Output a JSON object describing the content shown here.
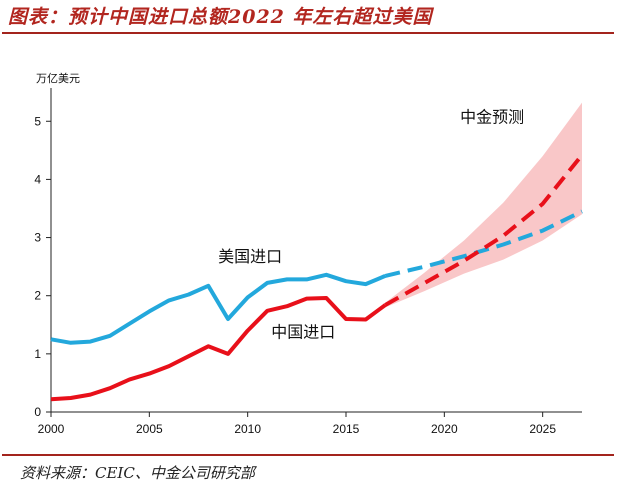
{
  "title": "图表：预计中国进口总额2022 年左右超过美国",
  "source": "资料来源：CEIC、中金公司研究部",
  "chart_data": {
    "type": "line",
    "ylabel": "万亿美元",
    "xlim": [
      2000,
      2027
    ],
    "ylim": [
      0,
      5.4
    ],
    "x_ticks": [
      2000,
      2005,
      2010,
      2015,
      2020,
      2025
    ],
    "y_ticks": [
      0,
      1,
      2,
      3,
      4,
      5
    ],
    "series": [
      {
        "name": "美国进口",
        "color": "#23a8dc",
        "style": "solid",
        "x": [
          2000,
          2001,
          2002,
          2003,
          2004,
          2005,
          2006,
          2007,
          2008,
          2009,
          2010,
          2011,
          2012,
          2013,
          2014,
          2015,
          2016,
          2017
        ],
        "values": [
          1.25,
          1.19,
          1.21,
          1.31,
          1.52,
          1.73,
          1.92,
          2.02,
          2.17,
          1.6,
          1.97,
          2.22,
          2.28,
          2.28,
          2.36,
          2.25,
          2.2,
          2.34
        ]
      },
      {
        "name": "美国进口（预测）",
        "color": "#23a8dc",
        "style": "dashed",
        "x": [
          2017,
          2019,
          2021,
          2023,
          2025,
          2027
        ],
        "values": [
          2.34,
          2.5,
          2.68,
          2.88,
          3.12,
          3.45
        ]
      },
      {
        "name": "中国进口",
        "color": "#e8101a",
        "style": "solid",
        "x": [
          2000,
          2001,
          2002,
          2003,
          2004,
          2005,
          2006,
          2007,
          2008,
          2009,
          2010,
          2011,
          2012,
          2013,
          2014,
          2015,
          2016,
          2017
        ],
        "values": [
          0.22,
          0.24,
          0.3,
          0.41,
          0.56,
          0.66,
          0.79,
          0.96,
          1.13,
          1.0,
          1.4,
          1.74,
          1.82,
          1.95,
          1.96,
          1.6,
          1.59,
          1.84
        ]
      },
      {
        "name": "中国进口（预测）",
        "color": "#e8101a",
        "style": "dashed",
        "x": [
          2017,
          2019,
          2021,
          2023,
          2025,
          2027
        ],
        "values": [
          1.84,
          2.22,
          2.6,
          3.03,
          3.58,
          4.42
        ]
      }
    ],
    "confidence_band": {
      "name": "中金预测",
      "color": "#f7b4b6",
      "x": [
        2017,
        2019,
        2021,
        2023,
        2025,
        2027
      ],
      "upper": [
        1.88,
        2.4,
        2.95,
        3.6,
        4.4,
        5.32
      ],
      "lower": [
        1.8,
        2.08,
        2.38,
        2.62,
        2.95,
        3.4
      ]
    },
    "annotations": [
      {
        "text": "美国进口",
        "x": 2008.5,
        "y": 2.58
      },
      {
        "text": "中国进口",
        "x": 2011.2,
        "y": 1.28
      },
      {
        "text": "中金预测",
        "x": 2020.8,
        "y": 4.98
      }
    ]
  }
}
